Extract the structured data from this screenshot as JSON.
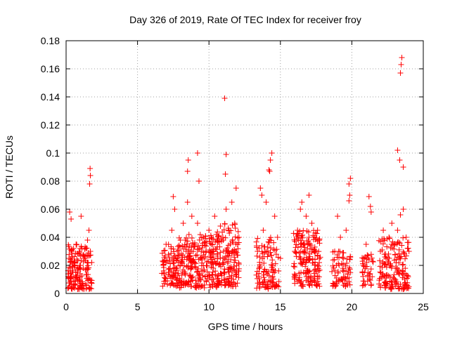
{
  "chart_data": {
    "type": "scatter",
    "title": "Day 326 of 2019, Rate Of TEC Index for receiver froy",
    "xlabel": "GPS time / hours",
    "ylabel": "ROTI / TECUs",
    "xlim": [
      0,
      25
    ],
    "ylim": [
      0,
      0.18
    ],
    "xticks": [
      "0",
      "5",
      "10",
      "15",
      "20",
      "25"
    ],
    "yticks": [
      "0",
      "0.02",
      "0.04",
      "0.06",
      "0.08",
      "0.1",
      "0.12",
      "0.14",
      "0.16",
      "0.18"
    ],
    "grid": true,
    "marker": "+",
    "color": "#ff0000",
    "series": [
      {
        "name": "ROTI",
        "x": [
          0.2,
          0.3,
          0.4,
          0.5,
          0.6,
          0.7,
          0.8,
          0.9,
          1.0,
          1.1,
          1.2,
          1.3,
          1.5,
          1.6,
          1.7,
          0.25,
          0.35,
          1.05,
          1.65,
          1.7,
          1.68,
          6.8,
          7.0,
          7.2,
          7.4,
          7.6,
          7.8,
          8.0,
          8.2,
          8.4,
          8.5,
          8.6,
          8.8,
          9.0,
          9.2,
          9.4,
          9.6,
          9.8,
          10.0,
          10.2,
          10.4,
          10.6,
          10.8,
          11.0,
          11.2,
          11.4,
          11.6,
          11.8,
          12.0,
          7.5,
          8.5,
          8.55,
          9.2,
          9.3,
          11.1,
          11.2,
          11.15,
          11.9,
          12.1,
          13.4,
          13.6,
          13.8,
          14.0,
          14.2,
          14.4,
          14.6,
          14.8,
          15.0,
          13.7,
          14.25,
          14.3,
          16.0,
          16.2,
          16.4,
          16.6,
          16.8,
          17.0,
          17.2,
          17.4,
          17.6,
          16.5,
          17.0,
          18.8,
          19.0,
          19.2,
          19.4,
          19.6,
          19.8,
          19.9,
          19.85,
          19.8,
          20.8,
          21.0,
          21.2,
          21.3,
          21.35,
          22.0,
          22.2,
          22.4,
          22.6,
          22.8,
          23.0,
          23.2,
          23.4,
          23.6,
          23.8,
          24.0,
          23.2,
          23.35,
          23.4,
          23.45,
          23.5,
          23.6
        ],
        "y": [
          0.025,
          0.018,
          0.03,
          0.012,
          0.022,
          0.035,
          0.015,
          0.028,
          0.02,
          0.032,
          0.018,
          0.025,
          0.038,
          0.045,
          0.03,
          0.058,
          0.053,
          0.055,
          0.078,
          0.084,
          0.089,
          0.02,
          0.035,
          0.015,
          0.045,
          0.06,
          0.025,
          0.038,
          0.05,
          0.03,
          0.065,
          0.042,
          0.055,
          0.035,
          0.05,
          0.025,
          0.04,
          0.03,
          0.045,
          0.035,
          0.055,
          0.028,
          0.048,
          0.038,
          0.06,
          0.045,
          0.065,
          0.05,
          0.035,
          0.069,
          0.087,
          0.095,
          0.1,
          0.08,
          0.139,
          0.099,
          0.085,
          0.075,
          0.04,
          0.03,
          0.075,
          0.045,
          0.065,
          0.088,
          0.1,
          0.055,
          0.04,
          0.025,
          0.07,
          0.087,
          0.095,
          0.03,
          0.045,
          0.06,
          0.035,
          0.055,
          0.04,
          0.05,
          0.03,
          0.045,
          0.065,
          0.07,
          0.03,
          0.055,
          0.04,
          0.025,
          0.045,
          0.078,
          0.082,
          0.07,
          0.066,
          0.02,
          0.035,
          0.069,
          0.062,
          0.058,
          0.03,
          0.045,
          0.025,
          0.04,
          0.05,
          0.035,
          0.045,
          0.056,
          0.06,
          0.04,
          0.03,
          0.102,
          0.095,
          0.157,
          0.163,
          0.168,
          0.09
        ]
      }
    ],
    "clusters": [
      {
        "x_range": [
          0.1,
          1.8
        ],
        "y_range": [
          0.003,
          0.035
        ],
        "count": 160
      },
      {
        "x_range": [
          6.7,
          7.9
        ],
        "y_range": [
          0.005,
          0.035
        ],
        "count": 90
      },
      {
        "x_range": [
          7.9,
          9.2
        ],
        "y_range": [
          0.003,
          0.04
        ],
        "count": 120
      },
      {
        "x_range": [
          9.2,
          10.6
        ],
        "y_range": [
          0.004,
          0.042
        ],
        "count": 120
      },
      {
        "x_range": [
          10.5,
          12.1
        ],
        "y_range": [
          0.005,
          0.05
        ],
        "count": 150
      },
      {
        "x_range": [
          13.3,
          14.9
        ],
        "y_range": [
          0.003,
          0.04
        ],
        "count": 110
      },
      {
        "x_range": [
          15.9,
          17.8
        ],
        "y_range": [
          0.005,
          0.045
        ],
        "count": 170
      },
      {
        "x_range": [
          18.6,
          19.9
        ],
        "y_range": [
          0.005,
          0.03
        ],
        "count": 70
      },
      {
        "x_range": [
          20.7,
          21.5
        ],
        "y_range": [
          0.005,
          0.028
        ],
        "count": 40
      },
      {
        "x_range": [
          21.9,
          24.0
        ],
        "y_range": [
          0.003,
          0.04
        ],
        "count": 160
      }
    ]
  }
}
